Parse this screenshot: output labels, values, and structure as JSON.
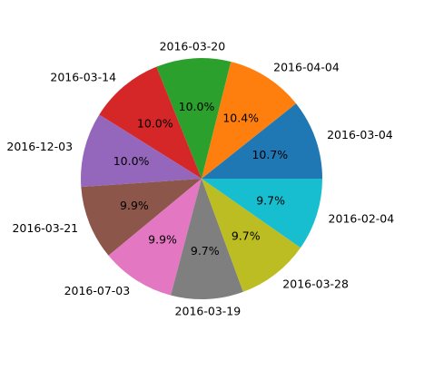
{
  "chart_data": {
    "type": "pie",
    "title": "",
    "start_angle_deg": 0,
    "direction": "counterclockwise",
    "slices": [
      {
        "label": "2016-03-04",
        "value": 10.7,
        "pct_text": "10.7%",
        "color": "#1f77b4"
      },
      {
        "label": "2016-04-04",
        "value": 10.4,
        "pct_text": "10.4%",
        "color": "#ff7f0e"
      },
      {
        "label": "2016-03-20",
        "value": 10.0,
        "pct_text": "10.0%",
        "color": "#2ca02c"
      },
      {
        "label": "2016-03-14",
        "value": 10.0,
        "pct_text": "10.0%",
        "color": "#d62728"
      },
      {
        "label": "2016-12-03",
        "value": 10.0,
        "pct_text": "10.0%",
        "color": "#9467bd"
      },
      {
        "label": "2016-03-21",
        "value": 9.9,
        "pct_text": "9.9%",
        "color": "#8c564b"
      },
      {
        "label": "2016-07-03",
        "value": 9.9,
        "pct_text": "9.9%",
        "color": "#e377c2"
      },
      {
        "label": "2016-03-19",
        "value": 9.7,
        "pct_text": "9.7%",
        "color": "#7f7f7f"
      },
      {
        "label": "2016-03-28",
        "value": 9.7,
        "pct_text": "9.7%",
        "color": "#bcbd22"
      },
      {
        "label": "2016-02-04",
        "value": 9.7,
        "pct_text": "9.7%",
        "color": "#17becf"
      }
    ]
  }
}
